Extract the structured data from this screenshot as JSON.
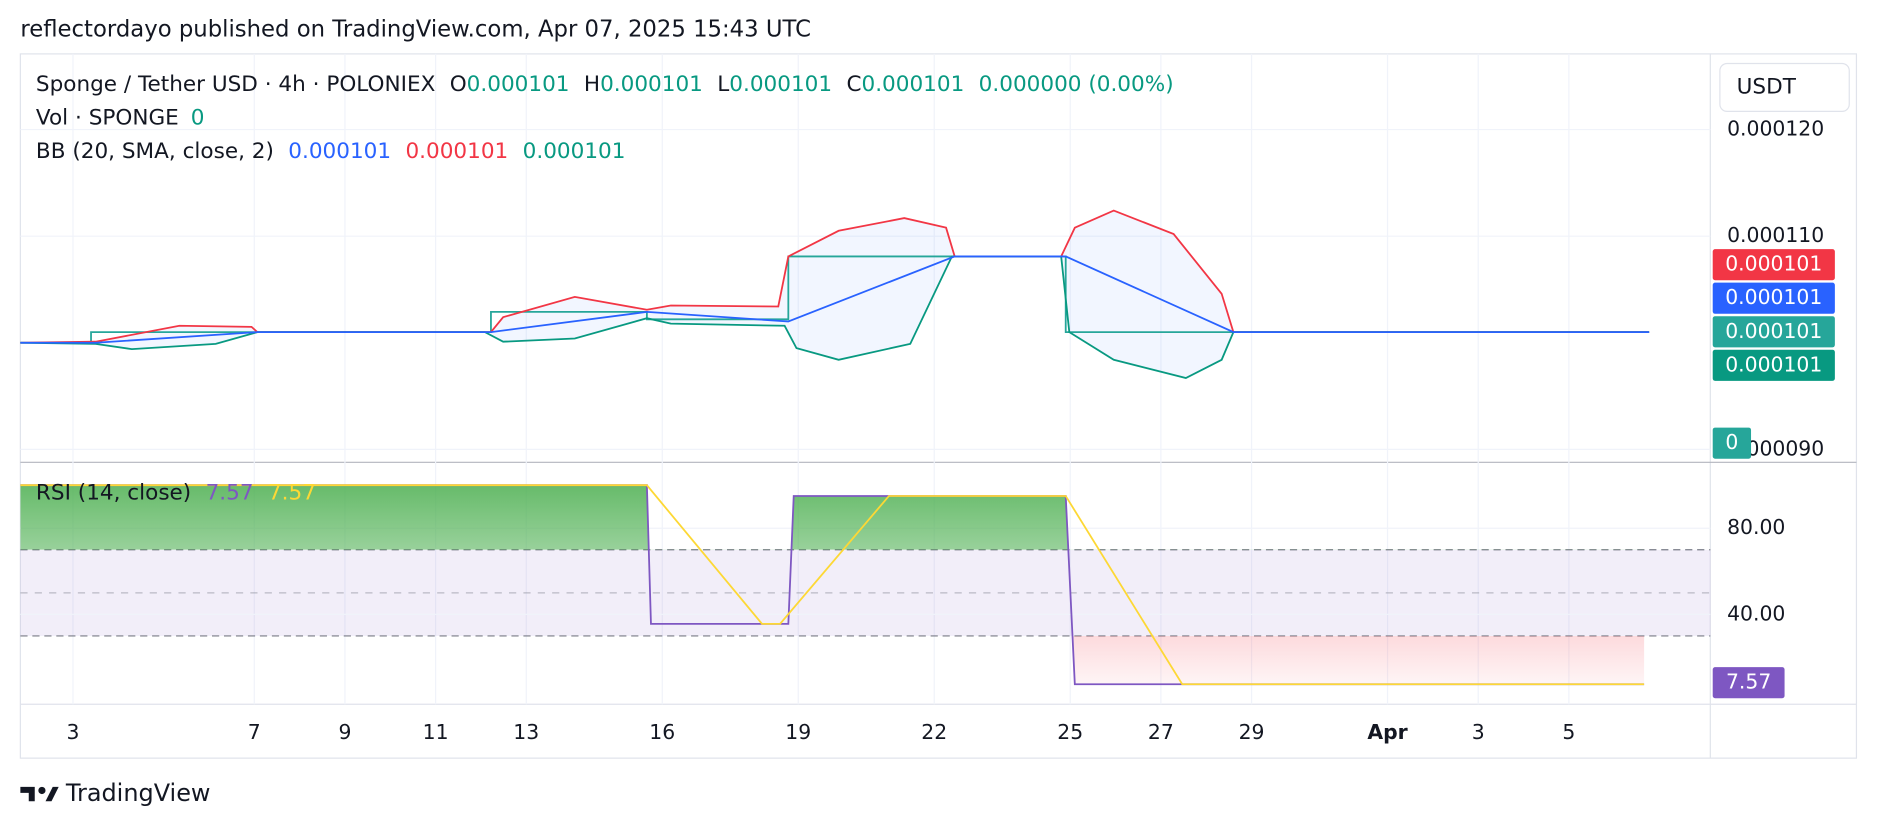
{
  "header": {
    "title": "reflectordayo published on TradingView.com, Apr 07, 2025 15:43 UTC"
  },
  "footer": {
    "brand": "TradingView"
  },
  "currency_button": "USDT",
  "chart_data": [
    {
      "type": "line",
      "legend": {
        "symbol": "Sponge / Tether USD · 4h · POLONIEX",
        "ohlc": [
          {
            "label": "O",
            "value": "0.000101"
          },
          {
            "label": "H",
            "value": "0.000101"
          },
          {
            "label": "L",
            "value": "0.000101"
          },
          {
            "label": "C",
            "value": "0.000101"
          }
        ],
        "change": "0.000000 (0.00%)",
        "volume": {
          "label": "Vol · SPONGE",
          "value": "0"
        },
        "bb": {
          "label": "BB (20, SMA, close, 2)",
          "values": [
            {
              "text": "0.000101",
              "color": "#2962ff"
            },
            {
              "text": "0.000101",
              "color": "#f23645"
            },
            {
              "text": "0.000101",
              "color": "#089981"
            }
          ]
        }
      },
      "price_tags": [
        {
          "text": "0.000101",
          "color": "#f23645"
        },
        {
          "text": "0.000101",
          "color": "#2962ff"
        },
        {
          "text": "0.000101",
          "color": "#26a69a"
        },
        {
          "text": "0.000101",
          "color": "#089981"
        }
      ],
      "volume_tag": {
        "text": "0",
        "color": "#26a69a"
      },
      "xlim": [
        1.84,
        39.12
      ],
      "xticks": [
        3,
        7,
        9,
        11,
        13,
        16,
        19,
        22,
        25,
        27,
        29,
        {
          "value": 32,
          "label": "Apr"
        },
        {
          "value": 34,
          "label": "3"
        },
        {
          "value": 36,
          "label": "5"
        }
      ],
      "ylim": [
        8.89e-05,
        0.0001271
      ],
      "yticks": [
        {
          "value": 0.00012,
          "label": "0.000120"
        },
        {
          "value": 0.00011,
          "label": "0.000110"
        },
        {
          "value": 9e-05,
          "label": "0.000090"
        }
      ],
      "grid": true,
      "band_fill": "#2962ff",
      "series": [
        {
          "color": "#f23645",
          "x": [
            1.84,
            3.5,
            5.35,
            6.94,
            7.07,
            12.22,
            12.49,
            14.07,
            15.66,
            16.19,
            18.56,
            18.78,
            19.89,
            21.34,
            22.26,
            22.45,
            24.8,
            25.1,
            25.96,
            27.28,
            28.34,
            28.6,
            37.77
          ],
          "values": [
            0.0001,
            0.0001001,
            0.0001016,
            0.0001015,
            0.000101,
            0.000101,
            0.0001024,
            0.0001043,
            0.0001031,
            0.0001035,
            0.0001034,
            0.0001081,
            0.0001105,
            0.0001117,
            0.0001108,
            0.0001081,
            0.0001081,
            0.0001108,
            0.0001124,
            0.0001102,
            0.0001046,
            0.000101,
            0.000101
          ]
        },
        {
          "color": "#089981",
          "x": [
            1.84,
            3.5,
            4.3,
            6.15,
            7.07,
            12.09,
            12.49,
            14.07,
            15.66,
            16.19,
            18.7,
            18.96,
            19.89,
            21.47,
            22.39,
            24.8,
            24.98,
            25.96,
            27.55,
            28.34,
            28.6,
            37.77
          ],
          "values": [
            0.0001,
            9.99e-05,
            9.94e-05,
            9.99e-05,
            0.000101,
            0.000101,
            0.0001001,
            0.0001004,
            0.0001023,
            0.0001018,
            0.0001016,
            9.95e-05,
            9.84e-05,
            9.99e-05,
            0.0001081,
            0.0001081,
            0.000101,
            9.84e-05,
            9.67e-05,
            9.84e-05,
            0.000101,
            0.000101
          ]
        },
        {
          "color": "#2962ff",
          "x": [
            1.84,
            3.5,
            7.07,
            12.22,
            15.66,
            18.78,
            22.45,
            24.9,
            28.6,
            37.77
          ],
          "values": [
            0.0001,
            0.0001,
            0.000101,
            0.000101,
            0.0001029,
            0.000102,
            0.0001081,
            0.0001081,
            0.000101,
            0.000101
          ]
        },
        {
          "color": "#26a69a",
          "x": [
            1.84,
            3.4,
            3.4,
            12.22,
            12.22,
            15.66,
            15.66,
            18.78,
            18.78,
            24.9,
            24.9,
            37.77
          ],
          "values": [
            0.0001,
            0.0001,
            0.000101,
            0.000101,
            0.0001029,
            0.0001029,
            0.0001022,
            0.0001022,
            0.0001081,
            0.0001081,
            0.000101,
            0.000101
          ]
        }
      ]
    },
    {
      "type": "line",
      "legend": {
        "label": "RSI (14, close)",
        "values": [
          {
            "text": "7.57",
            "color": "#7e57c2"
          },
          {
            "text": "7.57",
            "color": "#fdd835"
          }
        ]
      },
      "tag": {
        "text": "7.57",
        "color": "#7e57c2"
      },
      "ylim": [
        -1.7,
        110.6
      ],
      "yticks": [
        {
          "value": 80,
          "label": "80.00"
        },
        {
          "value": 40,
          "label": "40.00"
        }
      ],
      "bands": {
        "upper": 70,
        "middle": 50,
        "lower": 30,
        "color": "#7e57c2"
      },
      "series": [
        {
          "color": "#7e57c2",
          "x": [
            1.84,
            15.66,
            15.75,
            18.78,
            18.9,
            24.9,
            25.1,
            37.66
          ],
          "values": [
            100,
            100,
            35.6,
            35.6,
            95,
            95,
            7.57,
            7.57
          ]
        },
        {
          "color": "#fdd835",
          "x": [
            1.84,
            15.66,
            18.2,
            18.6,
            21.0,
            24.9,
            27.47,
            37.66
          ],
          "values": [
            100,
            100,
            35.6,
            35.6,
            95,
            95,
            7.57,
            7.57
          ]
        }
      ]
    }
  ]
}
